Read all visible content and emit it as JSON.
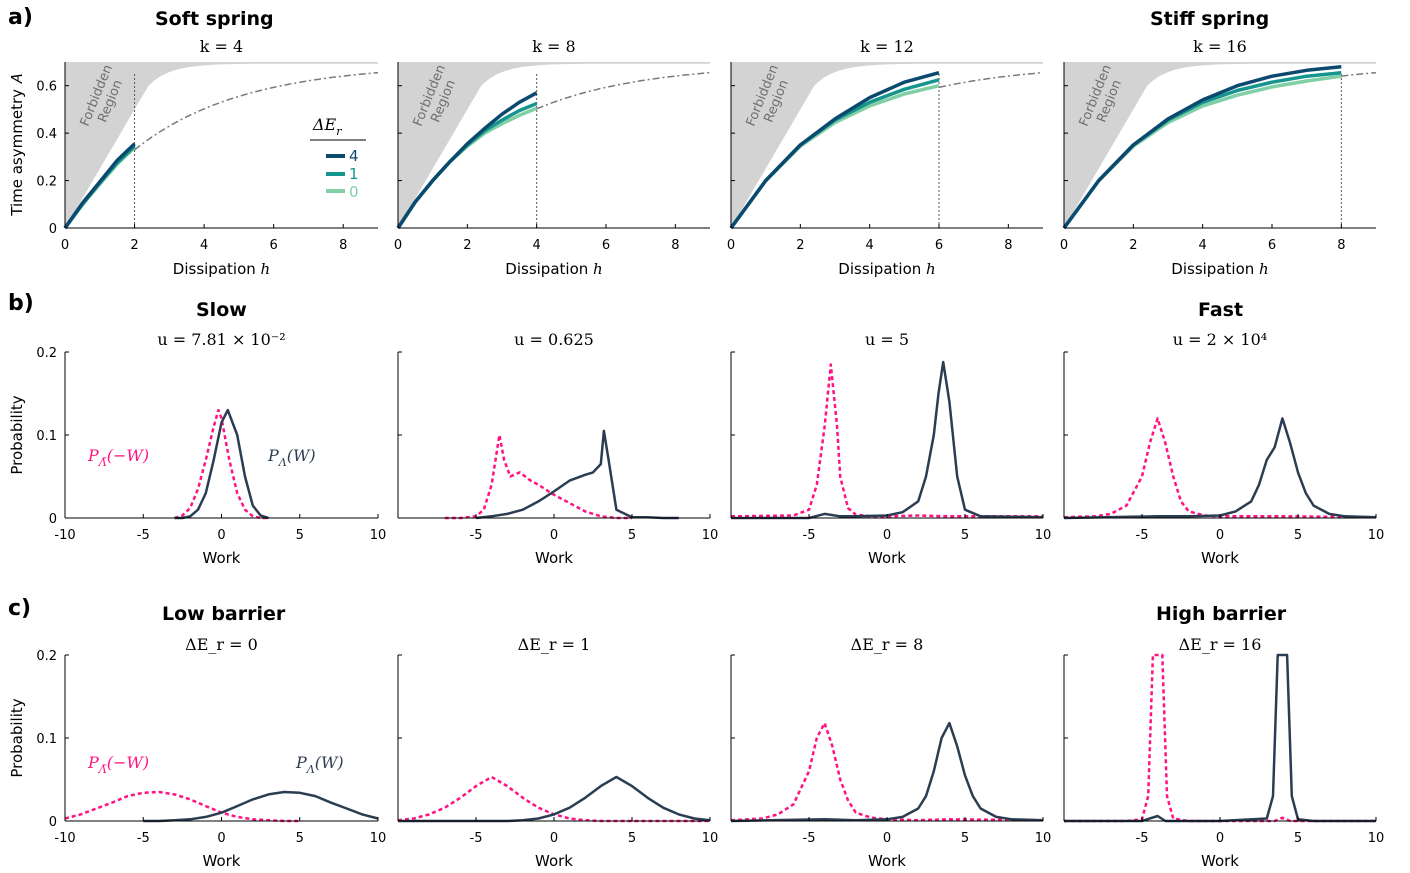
{
  "colors": {
    "dE4": "#0b4a6e",
    "dE1": "#16958f",
    "dE0": "#80cfa5",
    "forward": "#2b3d52",
    "reverse": "#ff1281",
    "forbidden": "#d3d3d3",
    "bound": "#7a7a7a"
  },
  "panels": {
    "a": {
      "tag": "a)",
      "left_heading": "Soft spring",
      "right_heading": "Stiff spring"
    },
    "b": {
      "tag": "b)",
      "left_heading": "Slow",
      "right_heading": "Fast"
    },
    "c": {
      "tag": "c)",
      "left_heading": "Low barrier",
      "right_heading": "High barrier"
    }
  },
  "row_a": {
    "ylabel": "Time asymmetry 𝐴",
    "xlabel_prefix": "Dissipation ",
    "xlabel_var": "h",
    "forbidden_text": [
      "Forbidden",
      "Region"
    ],
    "legend_title": "ΔE",
    "legend_sub": "r",
    "legend_labels": [
      "4",
      "1",
      "0"
    ]
  },
  "row_b": {
    "ylabel": "Probability",
    "xlabel": "Work",
    "reverse_label": "P",
    "reverse_sub": "Λ̃",
    "reverse_arg": "(−W)",
    "forward_label": "P",
    "forward_sub": "Λ",
    "forward_arg": "(W)"
  },
  "row_c": {
    "ylabel": "Probability",
    "xlabel": "Work",
    "reverse_label": "P",
    "reverse_sub": "Λ̃",
    "reverse_arg": "(−W)",
    "forward_label": "P",
    "forward_sub": "Λ",
    "forward_arg": "(W)"
  },
  "chart_data": [
    {
      "type": "line",
      "title": "k = 4",
      "xlabel": "Dissipation h",
      "ylabel": "Time asymmetry A",
      "xlim": [
        0,
        9
      ],
      "ylim": [
        0,
        0.7
      ],
      "xticks": [
        0,
        2,
        4,
        6,
        8
      ],
      "yticks": [
        0,
        0.2,
        0.4,
        0.6
      ],
      "h_max": 2,
      "series": [
        {
          "name": "4",
          "x": [
            0,
            0.5,
            1,
            1.5,
            2
          ],
          "y": [
            0,
            0.105,
            0.195,
            0.285,
            0.355
          ]
        },
        {
          "name": "1",
          "x": [
            0,
            0.5,
            1,
            1.5,
            2
          ],
          "y": [
            0,
            0.1,
            0.19,
            0.275,
            0.345
          ]
        },
        {
          "name": "0",
          "x": [
            0,
            0.5,
            1,
            1.5,
            2
          ],
          "y": [
            0,
            0.098,
            0.185,
            0.27,
            0.34
          ]
        }
      ]
    },
    {
      "type": "line",
      "title": "k = 8",
      "xlabel": "Dissipation h",
      "ylabel": "",
      "xlim": [
        0,
        9
      ],
      "ylim": [
        0,
        0.7
      ],
      "xticks": [
        0,
        2,
        4,
        6,
        8
      ],
      "yticks": [],
      "h_max": 4,
      "series": [
        {
          "name": "4",
          "x": [
            0,
            0.5,
            1,
            1.5,
            2,
            2.5,
            3,
            3.5,
            4
          ],
          "y": [
            0,
            0.11,
            0.2,
            0.28,
            0.355,
            0.42,
            0.48,
            0.53,
            0.57
          ]
        },
        {
          "name": "1",
          "x": [
            0,
            0.5,
            1,
            1.5,
            2,
            2.5,
            3,
            3.5,
            4
          ],
          "y": [
            0,
            0.11,
            0.2,
            0.28,
            0.35,
            0.41,
            0.455,
            0.495,
            0.525
          ]
        },
        {
          "name": "0",
          "x": [
            0,
            0.5,
            1,
            1.5,
            2,
            2.5,
            3,
            3.5,
            4
          ],
          "y": [
            0,
            0.11,
            0.2,
            0.28,
            0.345,
            0.4,
            0.44,
            0.475,
            0.505
          ]
        }
      ]
    },
    {
      "type": "line",
      "title": "k = 12",
      "xlabel": "Dissipation h",
      "ylabel": "",
      "xlim": [
        0,
        9
      ],
      "ylim": [
        0,
        0.7
      ],
      "xticks": [
        0,
        2,
        4,
        6,
        8
      ],
      "yticks": [],
      "h_max": 6,
      "series": [
        {
          "name": "4",
          "x": [
            0,
            1,
            2,
            3,
            4,
            5,
            6
          ],
          "y": [
            0,
            0.2,
            0.35,
            0.46,
            0.55,
            0.615,
            0.655
          ]
        },
        {
          "name": "1",
          "x": [
            0,
            1,
            2,
            3,
            4,
            5,
            6
          ],
          "y": [
            0,
            0.2,
            0.35,
            0.455,
            0.53,
            0.585,
            0.625
          ]
        },
        {
          "name": "0",
          "x": [
            0,
            1,
            2,
            3,
            4,
            5,
            6
          ],
          "y": [
            0,
            0.2,
            0.345,
            0.445,
            0.515,
            0.565,
            0.6
          ]
        }
      ]
    },
    {
      "type": "line",
      "title": "k = 16",
      "xlabel": "Dissipation h",
      "ylabel": "",
      "xlim": [
        0,
        9
      ],
      "ylim": [
        0,
        0.7
      ],
      "xticks": [
        0,
        2,
        4,
        6,
        8
      ],
      "yticks": [],
      "h_max": 8,
      "series": [
        {
          "name": "4",
          "x": [
            0,
            1,
            2,
            3,
            4,
            5,
            6,
            7,
            8
          ],
          "y": [
            0,
            0.2,
            0.35,
            0.46,
            0.54,
            0.6,
            0.64,
            0.665,
            0.68
          ]
        },
        {
          "name": "1",
          "x": [
            0,
            1,
            2,
            3,
            4,
            5,
            6,
            7,
            8
          ],
          "y": [
            0,
            0.2,
            0.35,
            0.455,
            0.53,
            0.58,
            0.615,
            0.64,
            0.655
          ]
        },
        {
          "name": "0",
          "x": [
            0,
            1,
            2,
            3,
            4,
            5,
            6,
            7,
            8
          ],
          "y": [
            0,
            0.2,
            0.345,
            0.445,
            0.515,
            0.56,
            0.595,
            0.62,
            0.64
          ]
        }
      ]
    },
    {
      "type": "line",
      "title": "u = 7.81 × 10⁻²",
      "xlabel": "Work",
      "ylabel": "Probability",
      "xlim": [
        -10,
        10
      ],
      "ylim": [
        0,
        0.2
      ],
      "xticks": [
        -10,
        -5,
        0,
        5,
        10
      ],
      "yticks": [
        0,
        0.1,
        0.2
      ],
      "series": [
        {
          "name": "P_Λ̃(−W)",
          "x": [
            -3,
            -2.5,
            -2,
            -1.5,
            -1,
            -0.5,
            -0.2,
            0,
            0.5,
            1,
            1.5,
            2,
            2.5,
            3
          ],
          "y": [
            0,
            0.003,
            0.012,
            0.035,
            0.07,
            0.11,
            0.13,
            0.12,
            0.07,
            0.03,
            0.01,
            0.002,
            0,
            0
          ]
        },
        {
          "name": "P_Λ(W)",
          "x": [
            -3,
            -2.5,
            -2,
            -1.5,
            -1,
            -0.5,
            0,
            0.4,
            1,
            1.5,
            2,
            2.5,
            3
          ],
          "y": [
            0,
            0,
            0.002,
            0.01,
            0.03,
            0.07,
            0.115,
            0.13,
            0.1,
            0.05,
            0.015,
            0.003,
            0
          ]
        }
      ]
    },
    {
      "type": "line",
      "title": "u = 0.625",
      "xlabel": "Work",
      "ylabel": "",
      "xlim": [
        -10,
        10
      ],
      "ylim": [
        0,
        0.2
      ],
      "xticks": [
        -5,
        0,
        5,
        10
      ],
      "yticks": [],
      "series": [
        {
          "name": "P_Λ̃(−W)",
          "x": [
            -7,
            -6,
            -5,
            -4.5,
            -4,
            -3.5,
            -3.2,
            -2.8,
            -2.2,
            -1.5,
            -1,
            0,
            1,
            2,
            3,
            4,
            5
          ],
          "y": [
            0,
            0,
            0.002,
            0.01,
            0.04,
            0.1,
            0.07,
            0.05,
            0.055,
            0.045,
            0.04,
            0.028,
            0.018,
            0.008,
            0.002,
            0,
            0
          ]
        },
        {
          "name": "P_Λ(W)",
          "x": [
            -5,
            -4,
            -3,
            -2,
            -1,
            0,
            1,
            2,
            2.5,
            3,
            3.2,
            3.5,
            4,
            5,
            6,
            7,
            8
          ],
          "y": [
            0,
            0.002,
            0.005,
            0.01,
            0.02,
            0.032,
            0.045,
            0.052,
            0.055,
            0.065,
            0.105,
            0.07,
            0.01,
            0.001,
            0.001,
            0,
            0
          ]
        }
      ]
    },
    {
      "type": "line",
      "title": "u = 5",
      "xlabel": "Work",
      "ylabel": "",
      "xlim": [
        -10,
        10
      ],
      "ylim": [
        0,
        0.2
      ],
      "xticks": [
        -5,
        0,
        5,
        10
      ],
      "yticks": [],
      "series": [
        {
          "name": "P_Λ̃(−W)",
          "x": [
            -10,
            -6,
            -5,
            -4.5,
            -4,
            -3.6,
            -3.2,
            -3,
            -2.5,
            -2,
            -1,
            0,
            2,
            4,
            10
          ],
          "y": [
            0.002,
            0.003,
            0.01,
            0.04,
            0.11,
            0.185,
            0.11,
            0.05,
            0.012,
            0.004,
            0.002,
            0.002,
            0.003,
            0.002,
            0.002
          ]
        },
        {
          "name": "P_Λ(W)",
          "x": [
            -10,
            -5,
            -4,
            -3,
            -2,
            0,
            1,
            2,
            2.5,
            3,
            3.3,
            3.6,
            4,
            4.5,
            5,
            6,
            10
          ],
          "y": [
            0,
            0,
            0.005,
            0.002,
            0.002,
            0.003,
            0.007,
            0.02,
            0.05,
            0.1,
            0.15,
            0.188,
            0.14,
            0.05,
            0.01,
            0.002,
            0.001
          ]
        }
      ]
    },
    {
      "type": "line",
      "title": "u = 2 × 10⁴",
      "xlabel": "Work",
      "ylabel": "",
      "xlim": [
        -10,
        10
      ],
      "ylim": [
        0,
        0.2
      ],
      "xticks": [
        -5,
        0,
        5,
        10
      ],
      "yticks": [],
      "series": [
        {
          "name": "P_Λ̃(−W)",
          "x": [
            -10,
            -8,
            -7,
            -6,
            -5,
            -4.5,
            -4,
            -3.5,
            -3,
            -2.5,
            -2,
            -1,
            0,
            2,
            4,
            10
          ],
          "y": [
            0.001,
            0.002,
            0.005,
            0.015,
            0.05,
            0.09,
            0.12,
            0.09,
            0.05,
            0.02,
            0.008,
            0.003,
            0.002,
            0.002,
            0.002,
            0.001
          ]
        },
        {
          "name": "P_Λ(W)",
          "x": [
            -10,
            -4,
            -2,
            0,
            1,
            2,
            2.5,
            3,
            3.5,
            4,
            4.5,
            5,
            5.5,
            6,
            7,
            8,
            10
          ],
          "y": [
            0,
            0.002,
            0.002,
            0.003,
            0.008,
            0.02,
            0.04,
            0.07,
            0.085,
            0.12,
            0.09,
            0.055,
            0.03,
            0.015,
            0.005,
            0.002,
            0.001
          ]
        }
      ]
    },
    {
      "type": "line",
      "title": "ΔE_r = 0",
      "xlabel": "Work",
      "ylabel": "Probability",
      "xlim": [
        -10,
        10
      ],
      "ylim": [
        0,
        0.2
      ],
      "xticks": [
        -10,
        -5,
        0,
        5,
        10
      ],
      "yticks": [
        0,
        0.1,
        0.2
      ],
      "series": [
        {
          "name": "P_Λ̃(−W)",
          "x": [
            -10,
            -9,
            -8,
            -7,
            -6,
            -5,
            -4,
            -3,
            -2,
            -1,
            0,
            1,
            2,
            3,
            4,
            5
          ],
          "y": [
            0.003,
            0.008,
            0.015,
            0.022,
            0.03,
            0.034,
            0.035,
            0.032,
            0.026,
            0.018,
            0.01,
            0.005,
            0.002,
            0.001,
            0,
            0
          ]
        },
        {
          "name": "P_Λ(W)",
          "x": [
            -5,
            -4,
            -3,
            -2,
            -1,
            0,
            1,
            2,
            3,
            4,
            5,
            6,
            7,
            8,
            9,
            10
          ],
          "y": [
            0,
            0,
            0.001,
            0.002,
            0.005,
            0.01,
            0.018,
            0.026,
            0.032,
            0.035,
            0.034,
            0.03,
            0.022,
            0.015,
            0.008,
            0.003
          ]
        }
      ]
    },
    {
      "type": "line",
      "title": "ΔE_r = 1",
      "xlabel": "Work",
      "ylabel": "",
      "xlim": [
        -10,
        10
      ],
      "ylim": [
        0,
        0.2
      ],
      "xticks": [
        -5,
        0,
        5,
        10
      ],
      "yticks": [],
      "series": [
        {
          "name": "P_Λ̃(−W)",
          "x": [
            -10,
            -9,
            -8,
            -7,
            -6,
            -5,
            -4,
            -3,
            -2,
            -1,
            0,
            1,
            2,
            3,
            10
          ],
          "y": [
            0.001,
            0.003,
            0.008,
            0.016,
            0.028,
            0.042,
            0.053,
            0.042,
            0.028,
            0.016,
            0.008,
            0.003,
            0.001,
            0,
            0
          ]
        },
        {
          "name": "P_Λ(W)",
          "x": [
            -10,
            -3,
            -2,
            -1,
            0,
            1,
            2,
            3,
            4,
            5,
            6,
            7,
            8,
            9,
            10
          ],
          "y": [
            0,
            0,
            0.001,
            0.003,
            0.008,
            0.016,
            0.028,
            0.042,
            0.053,
            0.042,
            0.028,
            0.016,
            0.008,
            0.003,
            0.001
          ]
        }
      ]
    },
    {
      "type": "line",
      "title": "ΔE_r = 8",
      "xlabel": "Work",
      "ylabel": "",
      "xlim": [
        -10,
        10
      ],
      "ylim": [
        0,
        0.2
      ],
      "xticks": [
        -5,
        0,
        5,
        10
      ],
      "yticks": [],
      "series": [
        {
          "name": "P_Λ̃(−W)",
          "x": [
            -10,
            -8,
            -7,
            -6,
            -5,
            -4.5,
            -4,
            -3.5,
            -3,
            -2.5,
            -2,
            -1,
            0,
            2,
            4,
            10
          ],
          "y": [
            0.001,
            0.003,
            0.008,
            0.02,
            0.06,
            0.1,
            0.118,
            0.09,
            0.05,
            0.025,
            0.01,
            0.004,
            0.002,
            0.001,
            0.002,
            0.001
          ]
        },
        {
          "name": "P_Λ(W)",
          "x": [
            -10,
            -4,
            -2,
            0,
            1,
            2,
            2.5,
            3,
            3.5,
            4,
            4.5,
            5,
            5.5,
            6,
            7,
            8,
            10
          ],
          "y": [
            0,
            0.002,
            0.001,
            0.002,
            0.005,
            0.015,
            0.03,
            0.06,
            0.1,
            0.118,
            0.09,
            0.055,
            0.03,
            0.015,
            0.005,
            0.002,
            0.001
          ]
        }
      ]
    },
    {
      "type": "line",
      "title": "ΔE_r = 16",
      "xlabel": "Work",
      "ylabel": "",
      "xlim": [
        -10,
        10
      ],
      "ylim": [
        0,
        0.2
      ],
      "xticks": [
        -5,
        0,
        5,
        10
      ],
      "yticks": [],
      "series": [
        {
          "name": "P_Λ̃(−W)",
          "x": [
            -10,
            -6,
            -5,
            -4.6,
            -4.3,
            -4.0,
            -3.7,
            -3.4,
            -3,
            -2,
            0,
            3.5,
            4,
            4.5,
            10
          ],
          "y": [
            0,
            0,
            0.002,
            0.03,
            0.2,
            0.2,
            0.2,
            0.03,
            0.003,
            0,
            0,
            0,
            0.004,
            0,
            0
          ]
        },
        {
          "name": "P_Λ(W)",
          "x": [
            -10,
            -5,
            -4,
            -3.5,
            -3,
            0,
            3,
            3.4,
            3.7,
            4.0,
            4.3,
            4.6,
            5,
            6,
            10
          ],
          "y": [
            0,
            0,
            0.006,
            0,
            0,
            0,
            0.003,
            0.03,
            0.2,
            0.2,
            0.2,
            0.03,
            0.002,
            0,
            0
          ]
        }
      ]
    }
  ]
}
